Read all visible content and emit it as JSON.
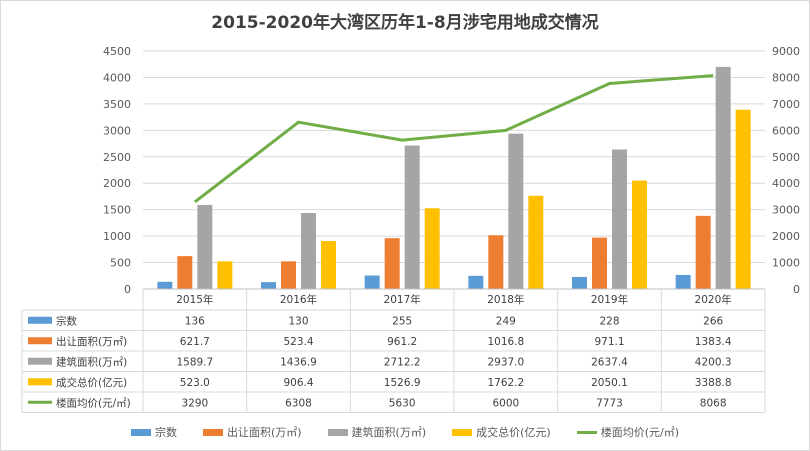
{
  "chart_data": {
    "type": "bar",
    "title": "2015-2020年大湾区历年1-8月涉宅用地成交情况",
    "categories": [
      "2015年",
      "2016年",
      "2017年",
      "2018年",
      "2019年",
      "2020年"
    ],
    "series": [
      {
        "name": "宗数",
        "type": "bar",
        "axis": "left",
        "color": "#5b9bd5",
        "values": [
          136,
          130,
          255,
          249,
          228,
          266
        ]
      },
      {
        "name": "出让面积(万㎡)",
        "type": "bar",
        "axis": "left",
        "color": "#ed7d31",
        "values": [
          621.7,
          523.4,
          961.2,
          1016.8,
          971.1,
          1383.4
        ]
      },
      {
        "name": "建筑面积(万㎡)",
        "type": "bar",
        "axis": "left",
        "color": "#a5a5a5",
        "values": [
          1589.7,
          1436.9,
          2712.2,
          2937.0,
          2637.4,
          4200.3
        ]
      },
      {
        "name": "成交总价(亿元)",
        "type": "bar",
        "axis": "left",
        "color": "#ffc000",
        "values": [
          523.0,
          906.4,
          1526.9,
          1762.2,
          2050.1,
          3388.8
        ]
      },
      {
        "name": "楼面均价(元/㎡)",
        "type": "line",
        "axis": "right",
        "color": "#70ad47",
        "values": [
          3290,
          6308,
          5630,
          6000,
          7773,
          8068
        ]
      }
    ],
    "left_axis": {
      "ticks": [
        "4500",
        "4000",
        "3500",
        "3000",
        "2500",
        "2000",
        "1500",
        "1000",
        "500",
        "0"
      ],
      "ylim": [
        0,
        4500
      ]
    },
    "right_axis": {
      "ticks": [
        "9000",
        "8000",
        "7000",
        "6000",
        "5000",
        "4000",
        "3000",
        "2000",
        "1000",
        "0"
      ],
      "ylim": [
        0,
        9000
      ]
    },
    "grid": true,
    "legend_position": "bottom",
    "data_table": true
  },
  "table": {
    "rows": [
      {
        "label": "宗数",
        "values": [
          "136",
          "130",
          "255",
          "249",
          "228",
          "266"
        ]
      },
      {
        "label": "出让面积(万㎡)",
        "values": [
          "621.7",
          "523.4",
          "961.2",
          "1016.8",
          "971.1",
          "1383.4"
        ]
      },
      {
        "label": "建筑面积(万㎡)",
        "values": [
          "1589.7",
          "1436.9",
          "2712.2",
          "2937.0",
          "2637.4",
          "4200.3"
        ]
      },
      {
        "label": "成交总价(亿元)",
        "values": [
          "523.0",
          "906.4",
          "1526.9",
          "1762.2",
          "2050.1",
          "3388.8"
        ]
      },
      {
        "label": "楼面均价(元/㎡)",
        "values": [
          "3290",
          "6308",
          "5630",
          "6000",
          "7773",
          "8068"
        ]
      }
    ]
  },
  "legend": [
    {
      "label": "宗数",
      "color": "#5b9bd5",
      "kind": "bar"
    },
    {
      "label": "出让面积(万㎡)",
      "color": "#ed7d31",
      "kind": "bar"
    },
    {
      "label": "建筑面积(万㎡)",
      "color": "#a5a5a5",
      "kind": "bar"
    },
    {
      "label": "成交总价(亿元)",
      "color": "#ffc000",
      "kind": "bar"
    },
    {
      "label": "楼面均价(元/㎡)",
      "color": "#70ad47",
      "kind": "line"
    }
  ]
}
